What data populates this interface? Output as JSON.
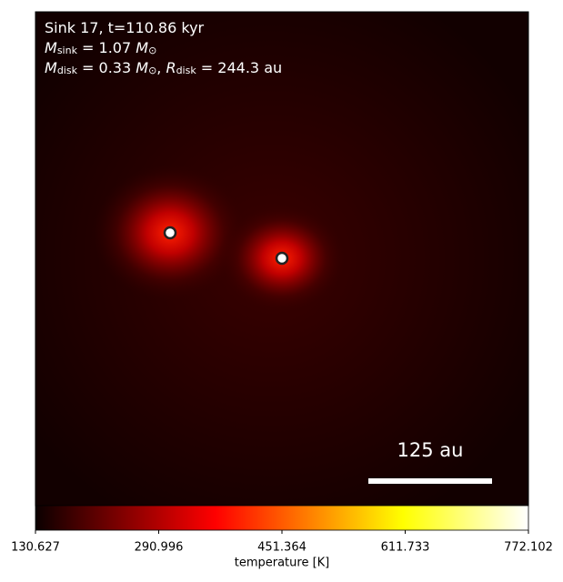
{
  "chart_data": {
    "type": "heatmap",
    "annotation_lines": [
      [
        {
          "text": "Sink 17, t=110.86 kyr"
        }
      ],
      [
        {
          "text": "M",
          "style": "italic"
        },
        {
          "text": "sink",
          "style": "sub"
        },
        {
          "text": " = 1.07 "
        },
        {
          "text": "M",
          "style": "italic"
        },
        {
          "text": "⊙",
          "style": "sub"
        }
      ],
      [
        {
          "text": "M",
          "style": "italic"
        },
        {
          "text": "disk",
          "style": "sub"
        },
        {
          "text": " = 0.33 "
        },
        {
          "text": "M",
          "style": "italic"
        },
        {
          "text": "⊙",
          "style": "sub"
        },
        {
          "text": ", "
        },
        {
          "text": "R",
          "style": "italic"
        },
        {
          "text": "disk",
          "style": "sub"
        },
        {
          "text": " = 244.3 au"
        }
      ]
    ],
    "scale_bar_label": "125 au",
    "colorbar": {
      "label": "temperature [K]",
      "colormap": "hot",
      "lim": [
        130.627,
        772.102
      ],
      "ticks": [
        130.627,
        290.996,
        451.364,
        611.733,
        772.102
      ]
    }
  }
}
